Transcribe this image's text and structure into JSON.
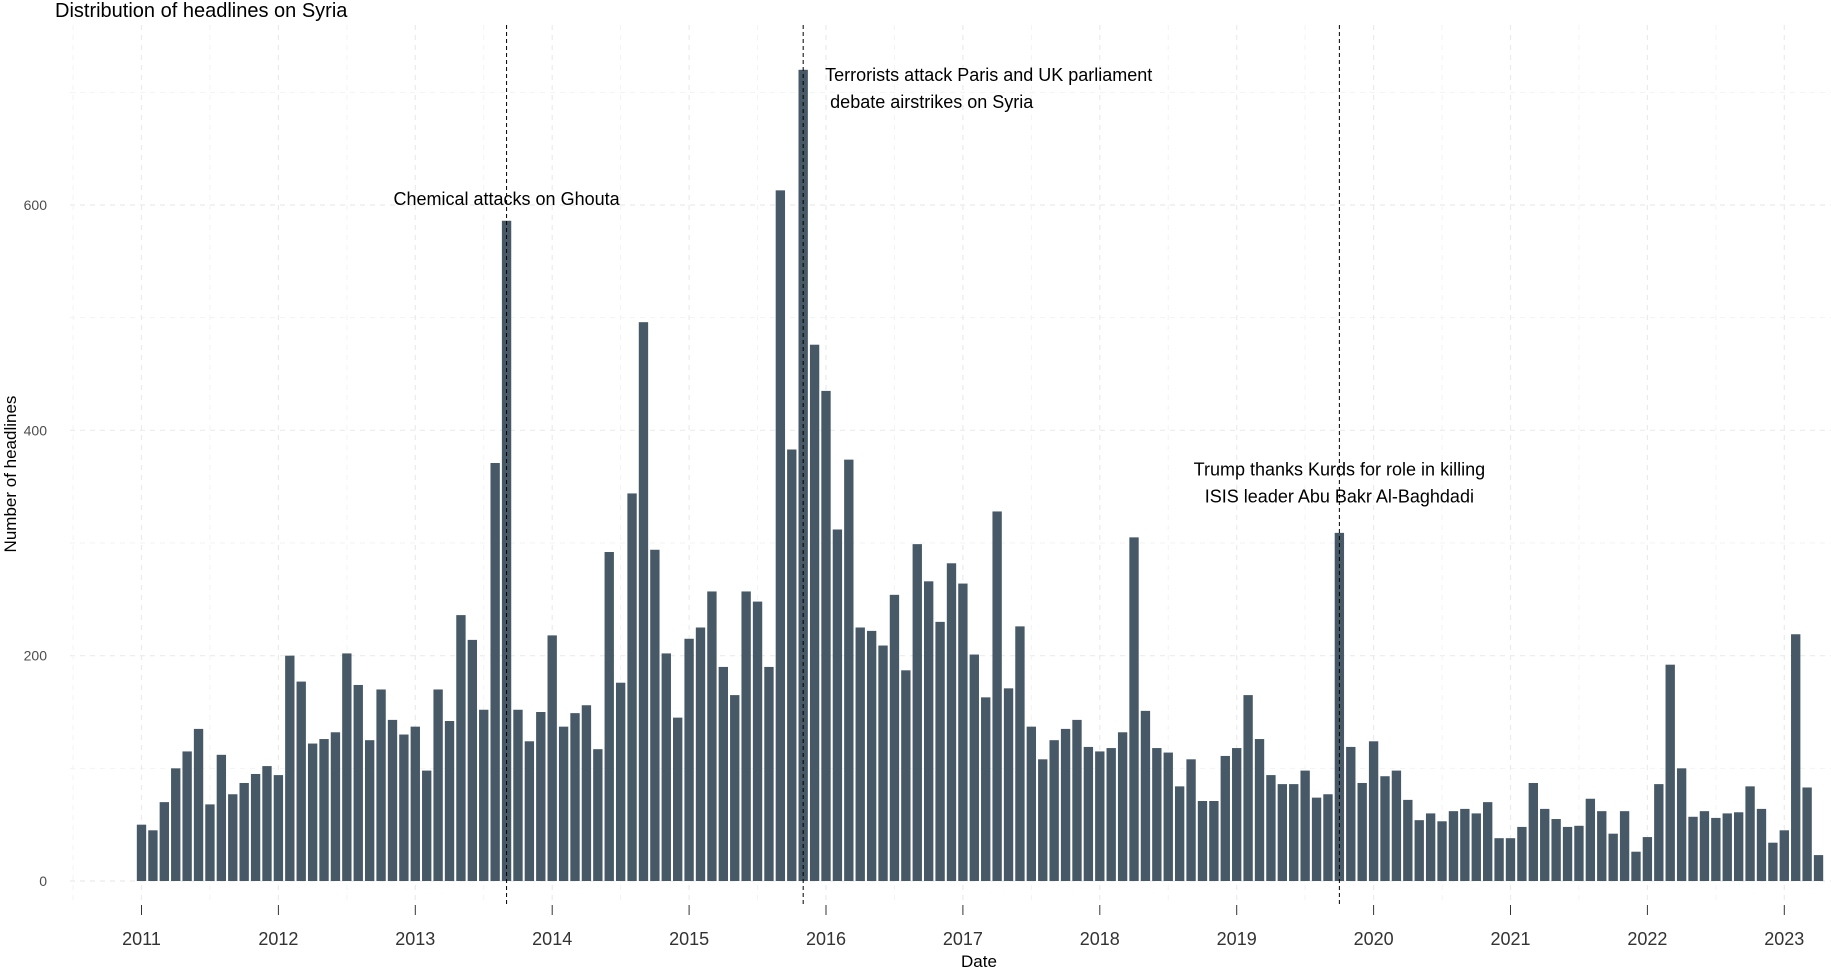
{
  "chart_data": {
    "type": "bar",
    "title": "Distribution of headlines on Syria",
    "xlabel": "Date",
    "ylabel": "Number of headlines",
    "bar_color": "#475966",
    "ylim": [
      0,
      750
    ],
    "yticks": [
      0,
      200,
      400,
      600
    ],
    "xticks": [
      "2011",
      "2012",
      "2013",
      "2014",
      "2015",
      "2016",
      "2017",
      "2018",
      "2019",
      "2020",
      "2021",
      "2022",
      "2023"
    ],
    "grid": true,
    "x": [
      "2011-01",
      "2011-02",
      "2011-03",
      "2011-04",
      "2011-05",
      "2011-06",
      "2011-07",
      "2011-08",
      "2011-09",
      "2011-10",
      "2011-11",
      "2011-12",
      "2012-01",
      "2012-02",
      "2012-03",
      "2012-04",
      "2012-05",
      "2012-06",
      "2012-07",
      "2012-08",
      "2012-09",
      "2012-10",
      "2012-11",
      "2012-12",
      "2013-01",
      "2013-02",
      "2013-03",
      "2013-04",
      "2013-05",
      "2013-06",
      "2013-07",
      "2013-08",
      "2013-09",
      "2013-10",
      "2013-11",
      "2013-12",
      "2014-01",
      "2014-02",
      "2014-03",
      "2014-04",
      "2014-05",
      "2014-06",
      "2014-07",
      "2014-08",
      "2014-09",
      "2014-10",
      "2014-11",
      "2014-12",
      "2015-01",
      "2015-02",
      "2015-03",
      "2015-04",
      "2015-05",
      "2015-06",
      "2015-07",
      "2015-08",
      "2015-09",
      "2015-10",
      "2015-11",
      "2015-12",
      "2016-01",
      "2016-02",
      "2016-03",
      "2016-04",
      "2016-05",
      "2016-06",
      "2016-07",
      "2016-08",
      "2016-09",
      "2016-10",
      "2016-11",
      "2016-12",
      "2017-01",
      "2017-02",
      "2017-03",
      "2017-04",
      "2017-05",
      "2017-06",
      "2017-07",
      "2017-08",
      "2017-09",
      "2017-10",
      "2017-11",
      "2017-12",
      "2018-01",
      "2018-02",
      "2018-03",
      "2018-04",
      "2018-05",
      "2018-06",
      "2018-07",
      "2018-08",
      "2018-09",
      "2018-10",
      "2018-11",
      "2018-12",
      "2019-01",
      "2019-02",
      "2019-03",
      "2019-04",
      "2019-05",
      "2019-06",
      "2019-07",
      "2019-08",
      "2019-09",
      "2019-10",
      "2019-11",
      "2019-12",
      "2020-01",
      "2020-02",
      "2020-03",
      "2020-04",
      "2020-05",
      "2020-06",
      "2020-07",
      "2020-08",
      "2020-09",
      "2020-10",
      "2020-11",
      "2020-12",
      "2021-01",
      "2021-02",
      "2021-03",
      "2021-04",
      "2021-05",
      "2021-06",
      "2021-07",
      "2021-08",
      "2021-09",
      "2021-10",
      "2021-11",
      "2021-12",
      "2022-01",
      "2022-02",
      "2022-03",
      "2022-04",
      "2022-05",
      "2022-06",
      "2022-07",
      "2022-08",
      "2022-09",
      "2022-10",
      "2022-11",
      "2022-12",
      "2023-01",
      "2023-02",
      "2023-03",
      "2023-04"
    ],
    "values": [
      50,
      45,
      70,
      100,
      115,
      135,
      68,
      112,
      77,
      87,
      95,
      102,
      94,
      200,
      177,
      122,
      126,
      132,
      202,
      174,
      125,
      170,
      143,
      130,
      137,
      98,
      170,
      142,
      236,
      214,
      152,
      371,
      586,
      152,
      124,
      150,
      218,
      137,
      149,
      156,
      117,
      292,
      176,
      344,
      496,
      294,
      202,
      145,
      215,
      225,
      257,
      190,
      165,
      257,
      248,
      190,
      613,
      383,
      720,
      476,
      435,
      312,
      374,
      225,
      222,
      209,
      254,
      187,
      299,
      266,
      230,
      282,
      264,
      201,
      163,
      328,
      171,
      226,
      137,
      108,
      125,
      135,
      143,
      119,
      115,
      118,
      132,
      305,
      151,
      118,
      114,
      84,
      108,
      71,
      71,
      111,
      118,
      165,
      126,
      94,
      86,
      86,
      98,
      74,
      77,
      309,
      119,
      87,
      124,
      93,
      98,
      72,
      54,
      60,
      53,
      62,
      64,
      60,
      70,
      38,
      38,
      48,
      87,
      64,
      55,
      48,
      49,
      73,
      62,
      42,
      62,
      26,
      39,
      86,
      192,
      100,
      57,
      62,
      56,
      60,
      61,
      84,
      64,
      34,
      45,
      219,
      83,
      23
    ],
    "events": [
      {
        "date": "2013-09",
        "label_lines": [
          "Chemical attacks on Ghouta"
        ],
        "label_y": 600
      },
      {
        "date": "2015-11",
        "label_lines": [
          "Terrorists attack Paris and UK parliament",
          " debate airstrikes on Syria"
        ],
        "label_y": 710
      },
      {
        "date": "2019-10",
        "label_lines": [
          "Trump thanks Kurds for role in killing",
          "ISIS leader Abu Bakr Al-Baghdadi"
        ],
        "label_y": 360
      }
    ]
  }
}
